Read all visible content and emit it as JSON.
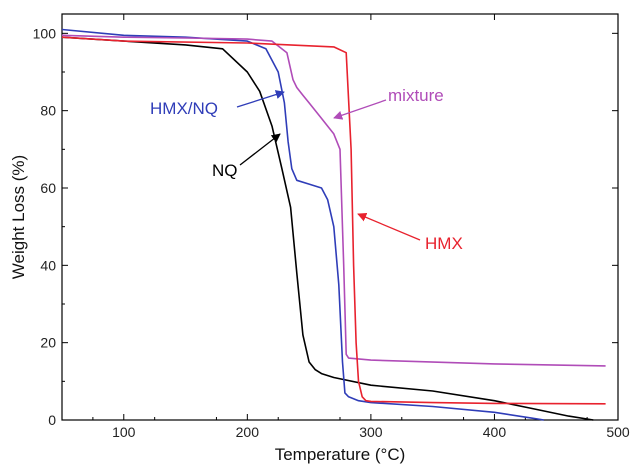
{
  "chart_data": {
    "type": "line",
    "title": "",
    "xlabel": "Temperature (°C)",
    "ylabel": "Weight Loss (%)",
    "xlim": [
      50,
      500
    ],
    "ylim": [
      0,
      105
    ],
    "xticks": [
      100,
      200,
      300,
      400,
      500
    ],
    "yticks": [
      0,
      20,
      40,
      60,
      80,
      100
    ],
    "grid": false,
    "legend": "none",
    "series": [
      {
        "name": "NQ",
        "color": "#000000",
        "x": [
          50,
          100,
          150,
          180,
          200,
          210,
          220,
          228,
          235,
          240,
          245,
          250,
          255,
          260,
          270,
          300,
          350,
          400,
          430,
          460,
          480
        ],
        "y": [
          99,
          98,
          97,
          96,
          90,
          85,
          76,
          65,
          55,
          38,
          22,
          15,
          13,
          12,
          11,
          9,
          7.5,
          5,
          3,
          1,
          0
        ]
      },
      {
        "name": "HMX/NQ",
        "color": "#2f3db8",
        "x": [
          50,
          100,
          150,
          200,
          215,
          225,
          230,
          233,
          236,
          240,
          250,
          260,
          265,
          270,
          274,
          277,
          279,
          282,
          290,
          300,
          350,
          400,
          430,
          440
        ],
        "y": [
          101,
          99.5,
          99,
          98,
          96,
          90,
          82,
          72,
          65,
          62,
          61,
          60,
          57,
          50,
          35,
          15,
          7,
          6,
          5,
          4.5,
          3.5,
          2,
          0.5,
          0
        ]
      },
      {
        "name": "mixture",
        "color": "#b04cb8",
        "x": [
          50,
          100,
          150,
          200,
          220,
          232,
          237,
          240,
          245,
          250,
          260,
          270,
          275,
          278,
          280,
          282,
          300,
          400,
          490
        ],
        "y": [
          99.5,
          99,
          98.8,
          98.5,
          98,
          95,
          88,
          86,
          84,
          82,
          78,
          74,
          70,
          40,
          17,
          16,
          15.5,
          14.5,
          14
        ]
      },
      {
        "name": "HMX",
        "color": "#e8222e",
        "x": [
          50,
          100,
          200,
          270,
          280,
          284,
          286,
          288,
          290,
          293,
          296,
          300,
          350,
          400,
          490
        ],
        "y": [
          99,
          98,
          97.5,
          96.5,
          95,
          70,
          40,
          20,
          10,
          6,
          5,
          4.8,
          4.5,
          4.3,
          4.2
        ]
      }
    ],
    "annotations": [
      {
        "text": "mixture",
        "color": "#b04cb8",
        "series": "mixture"
      },
      {
        "text": "HMX/NQ",
        "color": "#2f3db8",
        "series": "HMX/NQ"
      },
      {
        "text": "NQ",
        "color": "#000000",
        "series": "NQ"
      },
      {
        "text": "HMX",
        "color": "#e8222e",
        "series": "HMX"
      }
    ]
  }
}
